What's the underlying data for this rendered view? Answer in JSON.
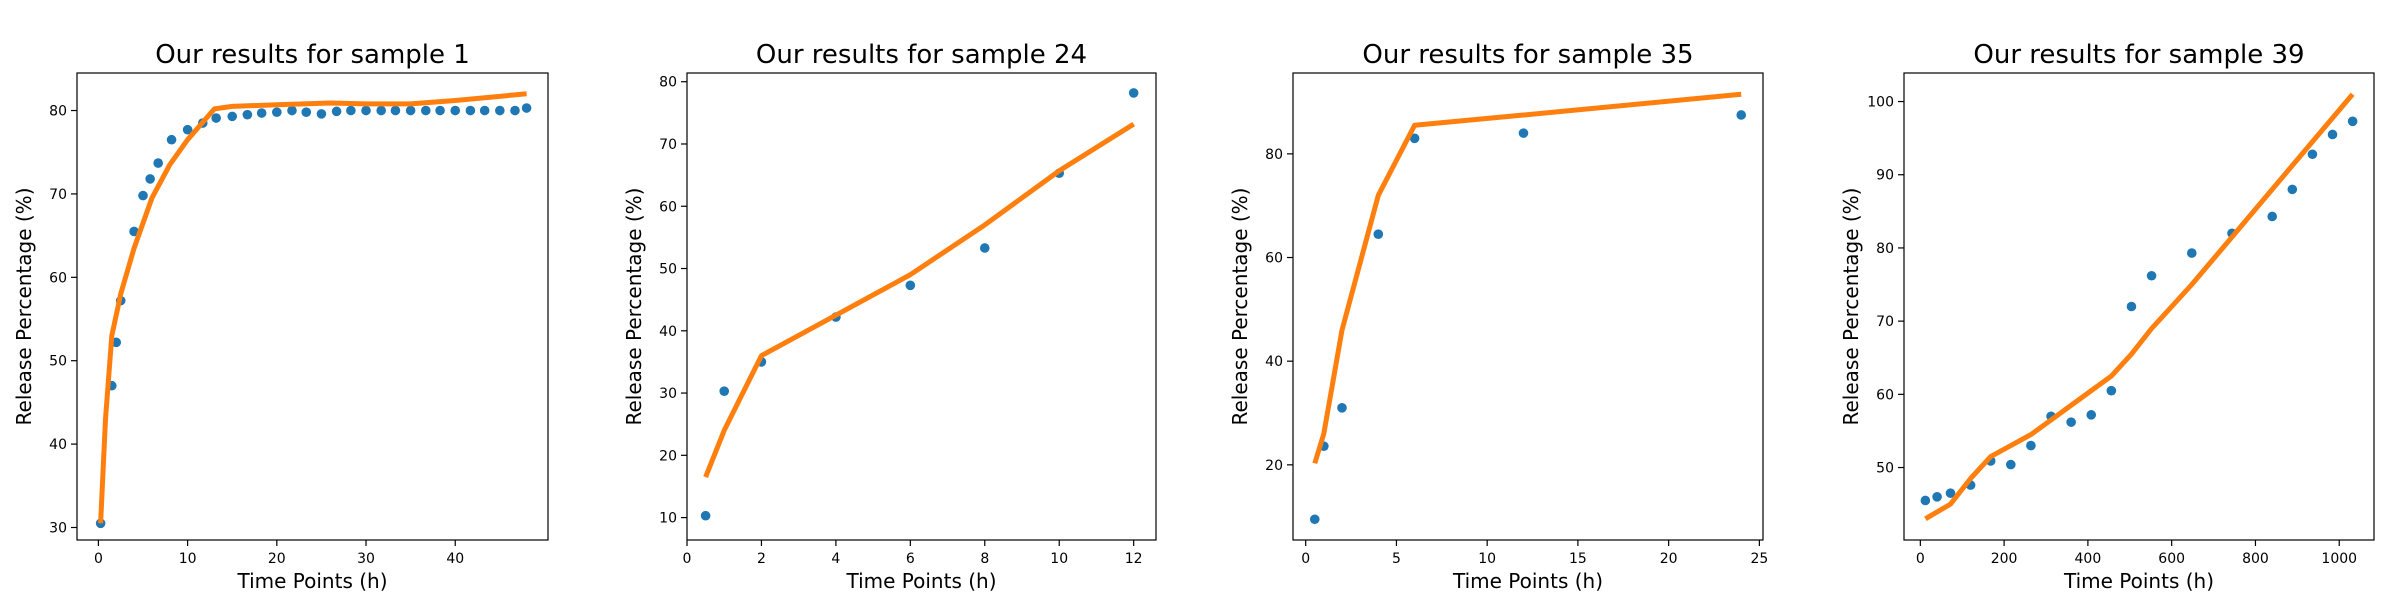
{
  "colors": {
    "points": "#1f77b4",
    "fit": "#ff7f0e",
    "axes": "#000000",
    "background": "#ffffff"
  },
  "chart_data": [
    {
      "type": "scatter",
      "title": "Our results for sample 1",
      "xlabel": "Time Points (h)",
      "ylabel": "Release Percentage (%)",
      "xlim": [
        -2.4,
        50.4
      ],
      "ylim": [
        28.5,
        84.5
      ],
      "xticks": [
        0,
        10,
        20,
        30,
        40
      ],
      "yticks": [
        30,
        40,
        50,
        60,
        70,
        80
      ],
      "grid": false,
      "series": [
        {
          "type": "scatter",
          "x": [
            0.25,
            1.5,
            2,
            2.5,
            4,
            5,
            5.8,
            6.7,
            8.2,
            10,
            11.7,
            13.2,
            15,
            16.7,
            18.3,
            20,
            21.7,
            23.3,
            25,
            26.7,
            28.3,
            30,
            31.7,
            33.3,
            35,
            36.7,
            38.3,
            40,
            41.7,
            43.3,
            45,
            46.7,
            48
          ],
          "y": [
            30.5,
            47,
            52.2,
            57.2,
            65.5,
            69.8,
            71.8,
            73.7,
            76.5,
            77.7,
            78.5,
            79.1,
            79.3,
            79.5,
            79.7,
            79.8,
            80,
            79.8,
            79.6,
            79.9,
            80,
            80,
            80,
            80,
            80,
            80,
            80,
            80,
            80,
            80,
            80,
            80,
            80.3
          ]
        },
        {
          "type": "line",
          "x": [
            0.25,
            0.8,
            1.5,
            2,
            2.5,
            4,
            6,
            8,
            10,
            13,
            15,
            20,
            26,
            30,
            35,
            40,
            48
          ],
          "y": [
            30.5,
            43,
            53,
            55.5,
            58,
            63.5,
            69.5,
            73.5,
            76.5,
            80.2,
            80.5,
            80.7,
            80.9,
            80.8,
            80.8,
            81.2,
            82
          ]
        }
      ]
    },
    {
      "type": "scatter",
      "title": "Our results for sample 24",
      "xlabel": "Time Points (h)",
      "ylabel": "Release Percentage (%)",
      "xlim": [
        0,
        12.6
      ],
      "ylim": [
        6.4,
        81.4
      ],
      "xticks": [
        0,
        2,
        4,
        6,
        8,
        10,
        12
      ],
      "yticks": [
        10,
        20,
        30,
        40,
        50,
        60,
        70,
        80
      ],
      "grid": false,
      "series": [
        {
          "type": "scatter",
          "x": [
            0.5,
            1,
            2,
            4,
            6,
            8,
            10,
            12
          ],
          "y": [
            10.3,
            30.3,
            35,
            42.2,
            47.3,
            53.3,
            65.3,
            78.2
          ]
        },
        {
          "type": "line",
          "x": [
            0.5,
            1,
            2,
            4,
            6,
            8,
            10,
            12
          ],
          "y": [
            16.5,
            24,
            36,
            42.5,
            49,
            57,
            65.7,
            73.2
          ]
        }
      ]
    },
    {
      "type": "scatter",
      "title": "Our results for sample 35",
      "xlabel": "Time Points (h)",
      "ylabel": "Release Percentage (%)",
      "xlim": [
        -0.7,
        25.2
      ],
      "ylim": [
        5.5,
        95.6
      ],
      "xticks": [
        0,
        5,
        10,
        15,
        20,
        25
      ],
      "yticks": [
        20,
        40,
        60,
        80
      ],
      "grid": false,
      "series": [
        {
          "type": "scatter",
          "x": [
            0.5,
            1,
            2,
            4,
            6,
            12,
            24
          ],
          "y": [
            9.5,
            23.6,
            31,
            64.5,
            83,
            84,
            87.5
          ]
        },
        {
          "type": "line",
          "x": [
            0.5,
            1,
            2,
            4,
            6,
            12,
            24
          ],
          "y": [
            20.3,
            26,
            46,
            72,
            85.5,
            87.5,
            91.5
          ]
        }
      ]
    },
    {
      "type": "scatter",
      "title": "Our results for sample 39",
      "xlabel": "Time Points (h)",
      "ylabel": "Release Percentage (%)",
      "xlim": [
        -39,
        1083
      ],
      "ylim": [
        40.1,
        103.9
      ],
      "xticks": [
        0,
        200,
        400,
        600,
        800,
        1000
      ],
      "yticks": [
        50,
        60,
        70,
        80,
        90,
        100
      ],
      "grid": false,
      "series": [
        {
          "type": "scatter",
          "x": [
            12,
            40,
            72,
            120,
            168,
            216,
            264,
            312,
            360,
            408,
            456,
            504,
            552,
            648,
            744,
            840,
            888,
            936,
            984,
            1032
          ],
          "y": [
            45.5,
            46,
            46.5,
            47.6,
            50.9,
            50.4,
            53,
            57,
            56.2,
            57.2,
            60.5,
            72,
            76.2,
            79.3,
            82,
            84.3,
            88,
            92.8,
            95.5,
            97.3
          ]
        },
        {
          "type": "line",
          "x": [
            12,
            72,
            120,
            168,
            216,
            264,
            312,
            360,
            408,
            456,
            504,
            552,
            648,
            744,
            840,
            936,
            1032
          ],
          "y": [
            43,
            45,
            48.5,
            51.5,
            53,
            54.5,
            56.5,
            58.5,
            60.5,
            62.5,
            65.5,
            69,
            75,
            81.5,
            88,
            94.5,
            101
          ]
        }
      ]
    }
  ]
}
